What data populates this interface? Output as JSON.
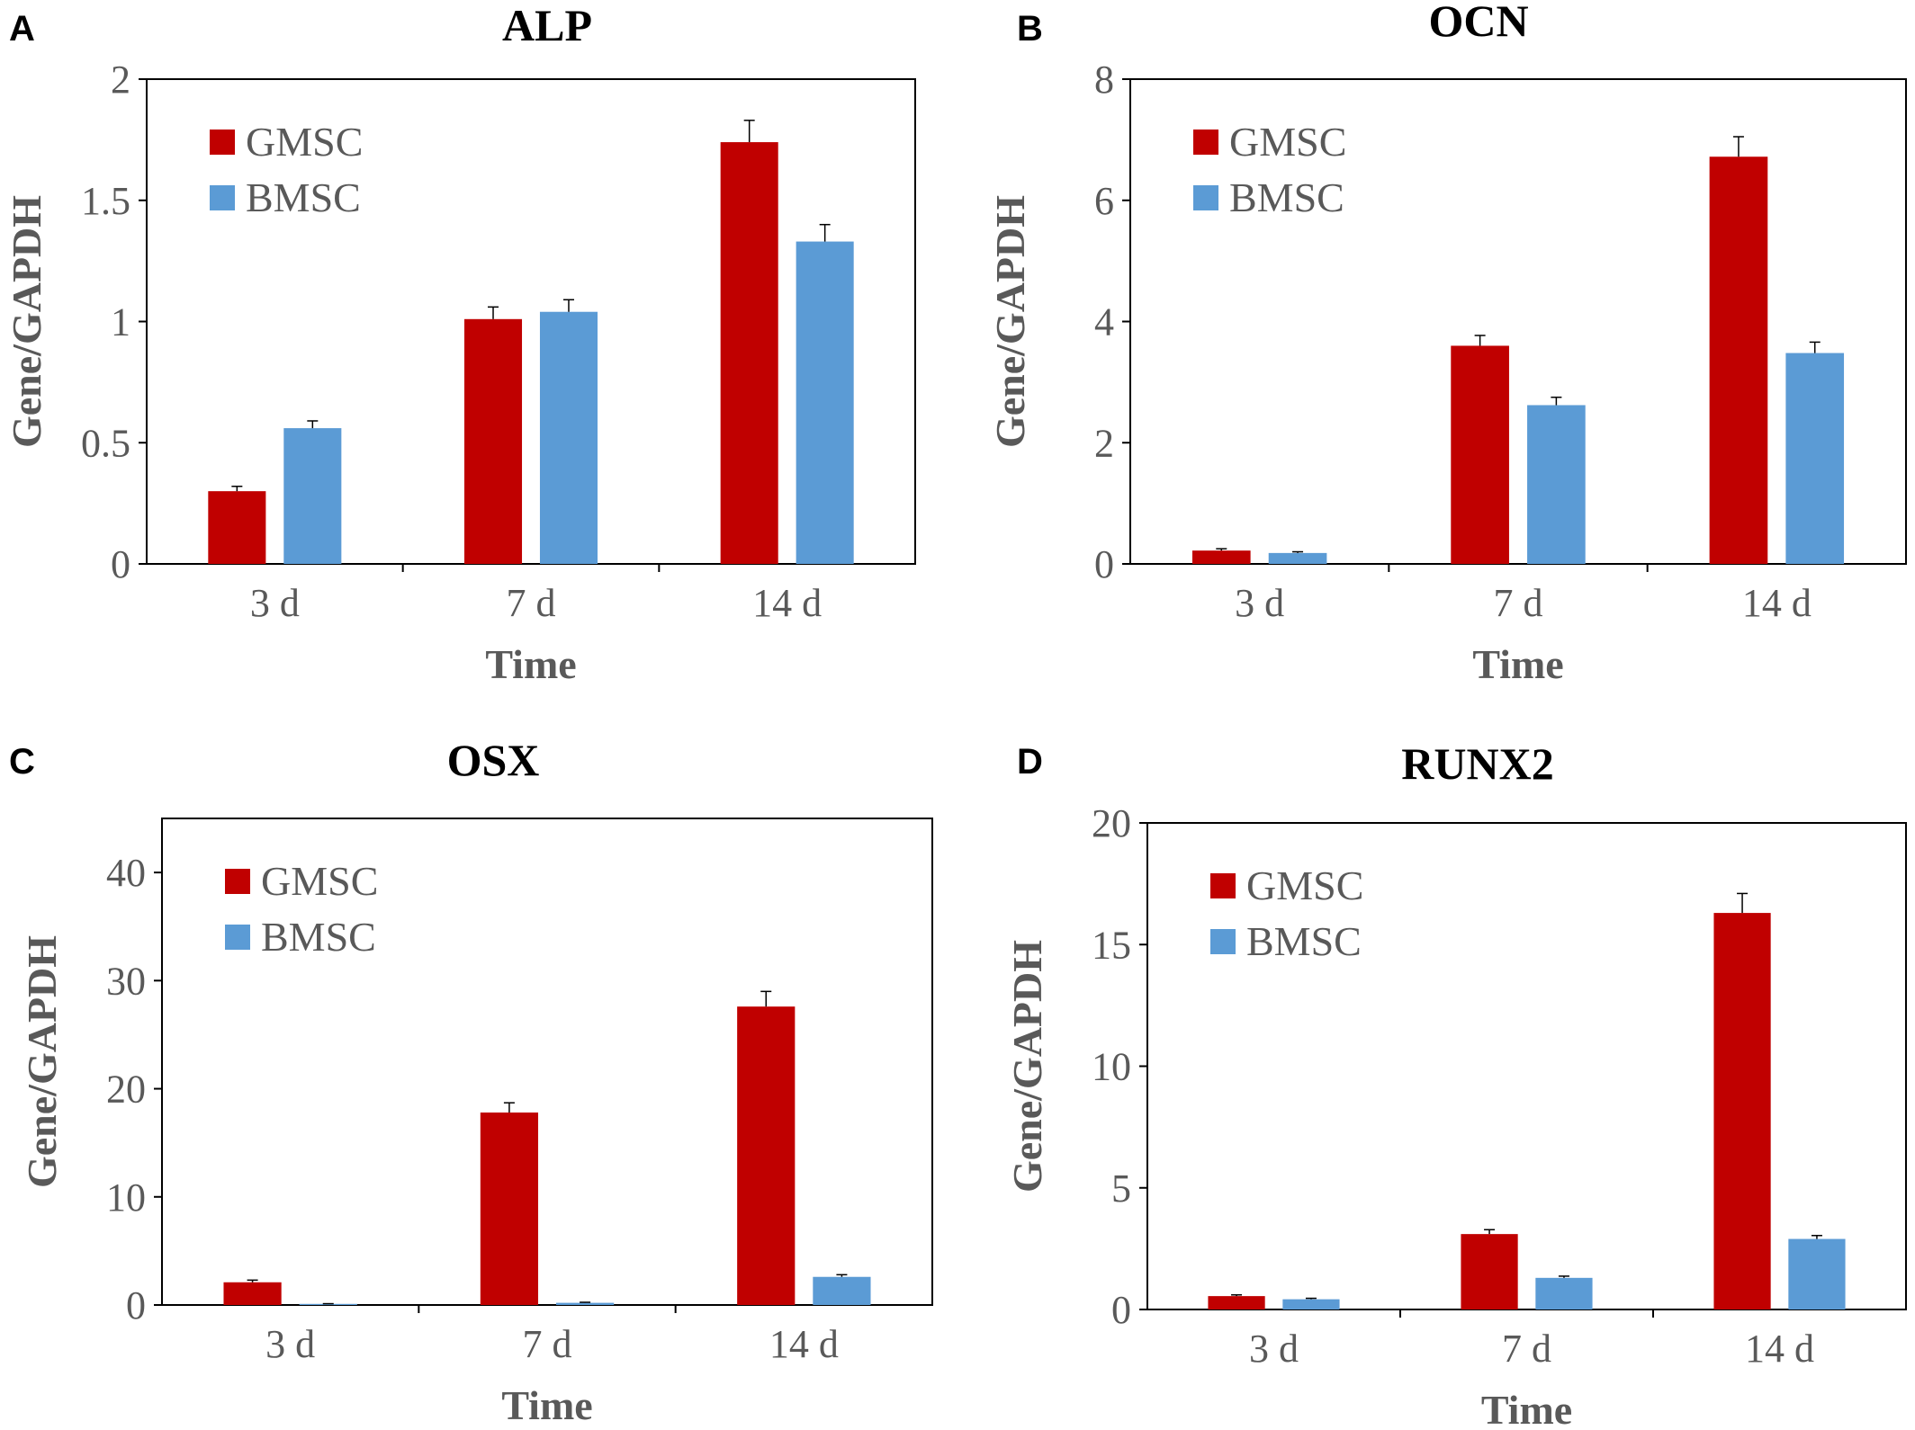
{
  "colors": {
    "GMSC": "#c00000",
    "BMSC": "#5b9bd5",
    "axis": "#000000",
    "text": "#595959"
  },
  "chart_data": [
    {
      "panel": "A",
      "type": "bar",
      "title": "ALP",
      "xlabel": "Time",
      "ylabel": "Gene/GAPDH",
      "categories": [
        "3 d",
        "7 d",
        "14 d"
      ],
      "ylim": [
        0,
        2
      ],
      "yticks": [
        0,
        0.5,
        1,
        1.5,
        2
      ],
      "ytick_labels": [
        "0",
        "0.5",
        "1",
        "1.5",
        "2"
      ],
      "legend_position": "top-left",
      "grid": false,
      "series": [
        {
          "name": "GMSC",
          "values": [
            0.3,
            1.01,
            1.74
          ],
          "errors": [
            0.02,
            0.05,
            0.09
          ]
        },
        {
          "name": "BMSC",
          "values": [
            0.56,
            1.04,
            1.33
          ],
          "errors": [
            0.03,
            0.05,
            0.07
          ]
        }
      ]
    },
    {
      "panel": "B",
      "type": "bar",
      "title": "OCN",
      "xlabel": "Time",
      "ylabel": "Gene/GAPDH",
      "categories": [
        "3 d",
        "7 d",
        "14 d"
      ],
      "ylim": [
        0,
        8
      ],
      "yticks": [
        0,
        2,
        4,
        6,
        8
      ],
      "ytick_labels": [
        "0",
        "2",
        "4",
        "6",
        "8"
      ],
      "legend_position": "top-left",
      "grid": false,
      "series": [
        {
          "name": "GMSC",
          "values": [
            0.22,
            3.6,
            6.72
          ],
          "errors": [
            0.03,
            0.17,
            0.33
          ]
        },
        {
          "name": "BMSC",
          "values": [
            0.18,
            2.62,
            3.48
          ],
          "errors": [
            0.02,
            0.13,
            0.18
          ]
        }
      ]
    },
    {
      "panel": "C",
      "type": "bar",
      "title": "OSX",
      "xlabel": "Time",
      "ylabel": "Gene/GAPDH",
      "categories": [
        "3 d",
        "7 d",
        "14 d"
      ],
      "ylim": [
        0,
        45
      ],
      "yticks": [
        0,
        10,
        20,
        30,
        40
      ],
      "ytick_labels": [
        "0",
        "10",
        "20",
        "30",
        "40"
      ],
      "legend_position": "top-left",
      "grid": false,
      "series": [
        {
          "name": "GMSC",
          "values": [
            2.1,
            17.8,
            27.6
          ],
          "errors": [
            0.2,
            0.9,
            1.4
          ]
        },
        {
          "name": "BMSC",
          "values": [
            0.1,
            0.2,
            2.6
          ],
          "errors": [
            0.02,
            0.05,
            0.2
          ]
        }
      ]
    },
    {
      "panel": "D",
      "type": "bar",
      "title": "RUNX2",
      "xlabel": "Time",
      "ylabel": "Gene/GAPDH",
      "categories": [
        "3 d",
        "7 d",
        "14 d"
      ],
      "ylim": [
        0,
        20
      ],
      "yticks": [
        0,
        5,
        10,
        15,
        20
      ],
      "ytick_labels": [
        "0",
        "5",
        "10",
        "15",
        "20"
      ],
      "legend_position": "top-left",
      "grid": false,
      "series": [
        {
          "name": "GMSC",
          "values": [
            0.55,
            3.1,
            16.3
          ],
          "errors": [
            0.05,
            0.18,
            0.8
          ]
        },
        {
          "name": "BMSC",
          "values": [
            0.42,
            1.3,
            2.9
          ],
          "errors": [
            0.04,
            0.07,
            0.14
          ]
        }
      ]
    }
  ]
}
